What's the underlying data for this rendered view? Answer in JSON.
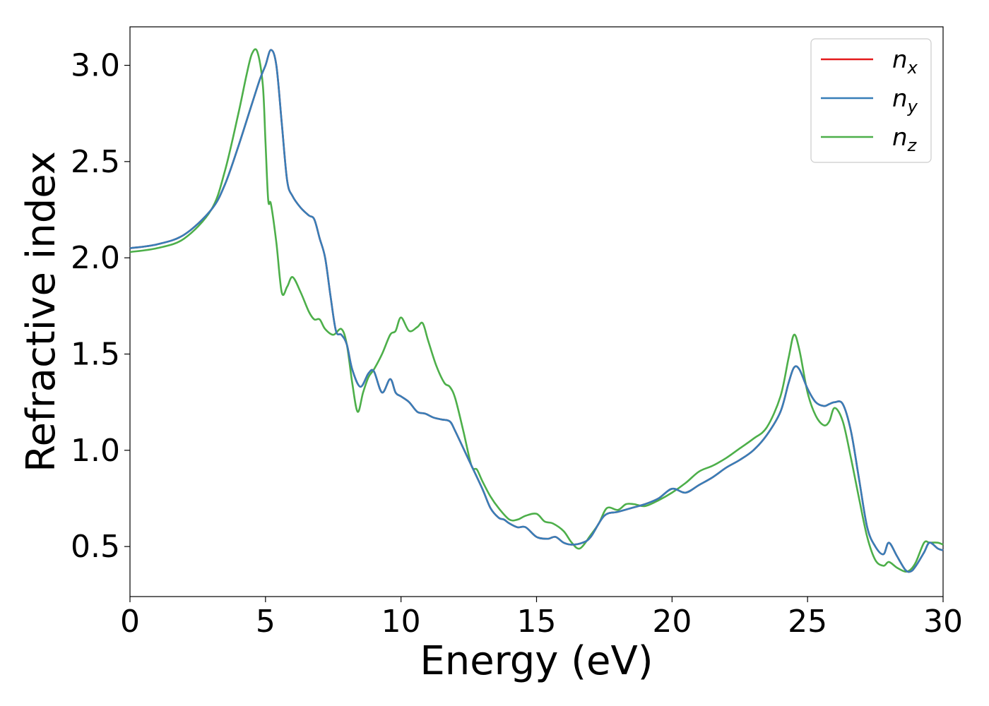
{
  "chart_data": {
    "type": "line",
    "xlabel": "Energy (eV)",
    "ylabel": "Refractive index",
    "xlim": [
      0,
      30
    ],
    "ylim": [
      0.24,
      3.2
    ],
    "xticks": [
      0,
      5,
      10,
      15,
      20,
      25,
      30
    ],
    "yticks": [
      0.5,
      1.0,
      1.5,
      2.0,
      2.5,
      3.0
    ],
    "xtick_labels": [
      "0",
      "5",
      "10",
      "15",
      "20",
      "25",
      "30"
    ],
    "ytick_labels": [
      "0.5",
      "1.0",
      "1.5",
      "2.0",
      "2.5",
      "3.0"
    ],
    "grid": false,
    "legend": "top-right",
    "series": [
      {
        "name": "n",
        "subscript": "x",
        "color": "#e41a1c",
        "x": [
          0,
          1,
          2,
          3,
          3.5,
          4,
          4.5,
          4.8,
          5.0,
          5.2,
          5.4,
          5.6,
          5.8,
          6.0,
          6.3,
          6.6,
          6.8,
          7.0,
          7.2,
          7.4,
          7.6,
          7.8,
          8.0,
          8.2,
          8.5,
          8.8,
          9.0,
          9.3,
          9.6,
          9.8,
          10.0,
          10.3,
          10.6,
          10.9,
          11.2,
          11.5,
          11.8,
          12.0,
          12.5,
          13.0,
          13.3,
          13.6,
          13.8,
          14.0,
          14.3,
          14.6,
          15.0,
          15.4,
          15.7,
          16.0,
          16.3,
          16.7,
          17.0,
          17.5,
          18.0,
          18.5,
          19.0,
          19.5,
          20.0,
          20.5,
          21.0,
          21.5,
          22.0,
          22.5,
          23.0,
          23.5,
          24.0,
          24.3,
          24.5,
          24.7,
          25.0,
          25.3,
          25.6,
          25.8,
          26.0,
          26.3,
          26.6,
          26.9,
          27.2,
          27.5,
          27.8,
          28.0,
          28.3,
          28.6,
          28.8,
          29.0,
          29.3,
          29.5,
          29.8,
          30.0
        ],
        "y": [
          2.05,
          2.07,
          2.12,
          2.25,
          2.38,
          2.58,
          2.8,
          2.93,
          3.0,
          3.08,
          3.0,
          2.7,
          2.4,
          2.32,
          2.26,
          2.22,
          2.2,
          2.1,
          2.0,
          1.8,
          1.62,
          1.6,
          1.55,
          1.42,
          1.33,
          1.4,
          1.41,
          1.3,
          1.37,
          1.3,
          1.28,
          1.25,
          1.2,
          1.19,
          1.17,
          1.16,
          1.15,
          1.1,
          0.95,
          0.8,
          0.7,
          0.65,
          0.64,
          0.62,
          0.6,
          0.6,
          0.55,
          0.54,
          0.55,
          0.52,
          0.51,
          0.52,
          0.55,
          0.66,
          0.68,
          0.7,
          0.72,
          0.75,
          0.8,
          0.78,
          0.82,
          0.86,
          0.91,
          0.95,
          1.0,
          1.08,
          1.2,
          1.35,
          1.43,
          1.42,
          1.32,
          1.25,
          1.23,
          1.24,
          1.25,
          1.24,
          1.1,
          0.85,
          0.6,
          0.5,
          0.46,
          0.52,
          0.45,
          0.38,
          0.37,
          0.4,
          0.47,
          0.52,
          0.49,
          0.48
        ]
      },
      {
        "name": "n",
        "subscript": "y",
        "color": "#377eb8",
        "x": [
          0,
          1,
          2,
          3,
          3.5,
          4,
          4.5,
          4.8,
          5.0,
          5.2,
          5.4,
          5.6,
          5.8,
          6.0,
          6.3,
          6.6,
          6.8,
          7.0,
          7.2,
          7.4,
          7.6,
          7.8,
          8.0,
          8.2,
          8.5,
          8.8,
          9.0,
          9.3,
          9.6,
          9.8,
          10.0,
          10.3,
          10.6,
          10.9,
          11.2,
          11.5,
          11.8,
          12.0,
          12.5,
          13.0,
          13.3,
          13.6,
          13.8,
          14.0,
          14.3,
          14.6,
          15.0,
          15.4,
          15.7,
          16.0,
          16.3,
          16.7,
          17.0,
          17.5,
          18.0,
          18.5,
          19.0,
          19.5,
          20.0,
          20.5,
          21.0,
          21.5,
          22.0,
          22.5,
          23.0,
          23.5,
          24.0,
          24.3,
          24.5,
          24.7,
          25.0,
          25.3,
          25.6,
          25.8,
          26.0,
          26.3,
          26.6,
          26.9,
          27.2,
          27.5,
          27.8,
          28.0,
          28.3,
          28.6,
          28.8,
          29.0,
          29.3,
          29.5,
          29.8,
          30.0
        ],
        "y": [
          2.05,
          2.07,
          2.12,
          2.25,
          2.38,
          2.58,
          2.8,
          2.93,
          3.0,
          3.08,
          3.0,
          2.7,
          2.4,
          2.32,
          2.26,
          2.22,
          2.2,
          2.1,
          2.0,
          1.8,
          1.62,
          1.6,
          1.55,
          1.42,
          1.33,
          1.4,
          1.41,
          1.3,
          1.37,
          1.3,
          1.28,
          1.25,
          1.2,
          1.19,
          1.17,
          1.16,
          1.15,
          1.1,
          0.95,
          0.8,
          0.7,
          0.65,
          0.64,
          0.62,
          0.6,
          0.6,
          0.55,
          0.54,
          0.55,
          0.52,
          0.51,
          0.52,
          0.55,
          0.66,
          0.68,
          0.7,
          0.72,
          0.75,
          0.8,
          0.78,
          0.82,
          0.86,
          0.91,
          0.95,
          1.0,
          1.08,
          1.2,
          1.35,
          1.43,
          1.42,
          1.32,
          1.25,
          1.23,
          1.24,
          1.25,
          1.24,
          1.1,
          0.85,
          0.6,
          0.5,
          0.46,
          0.52,
          0.45,
          0.38,
          0.37,
          0.4,
          0.47,
          0.52,
          0.49,
          0.48
        ]
      },
      {
        "name": "n",
        "subscript": "z",
        "color": "#4daf4a",
        "x": [
          0,
          1,
          2,
          3,
          3.5,
          4,
          4.3,
          4.5,
          4.7,
          4.9,
          5.0,
          5.1,
          5.2,
          5.4,
          5.6,
          5.8,
          6.0,
          6.3,
          6.6,
          6.8,
          7.0,
          7.2,
          7.5,
          7.8,
          8.0,
          8.2,
          8.4,
          8.6,
          8.8,
          9.0,
          9.3,
          9.6,
          9.8,
          10.0,
          10.3,
          10.6,
          10.8,
          11.0,
          11.3,
          11.6,
          11.8,
          12.0,
          12.3,
          12.6,
          12.8,
          13.0,
          13.3,
          13.6,
          14.0,
          14.3,
          14.6,
          15.0,
          15.3,
          15.6,
          16.0,
          16.3,
          16.6,
          17.0,
          17.3,
          17.6,
          18.0,
          18.3,
          18.6,
          19.0,
          19.5,
          20.0,
          20.5,
          21.0,
          21.5,
          22.0,
          22.5,
          23.0,
          23.5,
          24.0,
          24.3,
          24.5,
          24.7,
          25.0,
          25.3,
          25.6,
          25.8,
          26.0,
          26.3,
          26.6,
          26.9,
          27.2,
          27.5,
          27.8,
          28.0,
          28.3,
          28.6,
          28.8,
          29.0,
          29.3,
          29.5,
          29.8,
          30.0
        ],
        "y": [
          2.03,
          2.05,
          2.1,
          2.25,
          2.45,
          2.75,
          2.95,
          3.06,
          3.07,
          2.9,
          2.6,
          2.3,
          2.28,
          2.08,
          1.82,
          1.85,
          1.9,
          1.82,
          1.72,
          1.68,
          1.68,
          1.63,
          1.6,
          1.63,
          1.55,
          1.35,
          1.2,
          1.3,
          1.38,
          1.42,
          1.5,
          1.6,
          1.62,
          1.69,
          1.62,
          1.64,
          1.66,
          1.57,
          1.44,
          1.35,
          1.33,
          1.27,
          1.1,
          0.92,
          0.9,
          0.84,
          0.76,
          0.7,
          0.64,
          0.64,
          0.66,
          0.67,
          0.63,
          0.62,
          0.58,
          0.52,
          0.49,
          0.56,
          0.62,
          0.7,
          0.69,
          0.72,
          0.72,
          0.71,
          0.74,
          0.78,
          0.83,
          0.89,
          0.92,
          0.96,
          1.01,
          1.06,
          1.12,
          1.28,
          1.48,
          1.6,
          1.52,
          1.3,
          1.18,
          1.13,
          1.15,
          1.22,
          1.15,
          0.96,
          0.75,
          0.55,
          0.43,
          0.4,
          0.42,
          0.39,
          0.37,
          0.38,
          0.42,
          0.52,
          0.52,
          0.52,
          0.51
        ]
      }
    ]
  }
}
